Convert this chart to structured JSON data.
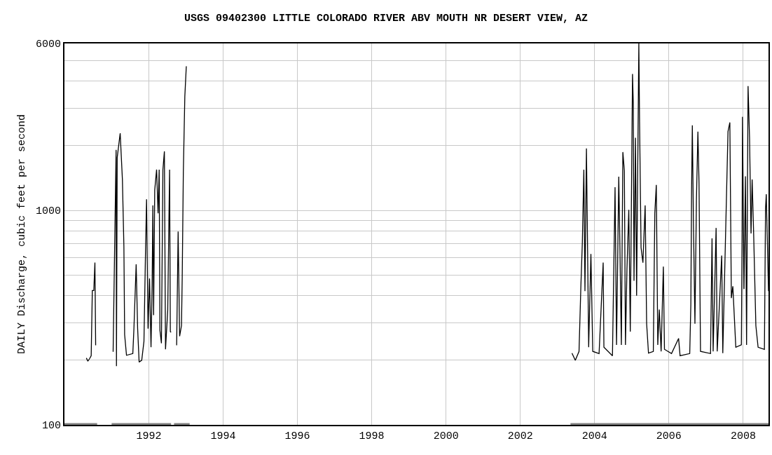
{
  "chart_data": {
    "type": "line",
    "title": "USGS 09402300 LITTLE COLORADO RIVER ABV MOUTH NR DESERT VIEW, AZ",
    "ylabel": "DAILY Discharge, cubic feet per second",
    "log": "y",
    "grid": true,
    "marker": "none",
    "line_style": "solid",
    "xlim": [
      1989.73,
      2008.68
    ],
    "xticks": [
      1992,
      1994,
      1996,
      1998,
      2000,
      2002,
      2004,
      2006,
      2008
    ],
    "ylim": [
      100,
      6000
    ],
    "yticks": [
      100,
      {
        "value": 200,
        "label": null
      },
      {
        "value": 300,
        "label": null
      },
      {
        "value": 400,
        "label": null
      },
      {
        "value": 500,
        "label": null
      },
      {
        "value": 600,
        "label": null
      },
      {
        "value": 700,
        "label": null
      },
      {
        "value": 800,
        "label": null
      },
      {
        "value": 900,
        "label": null
      },
      1000,
      {
        "value": 2000,
        "label": null
      },
      {
        "value": 3000,
        "label": null
      },
      {
        "value": 4000,
        "label": null
      },
      {
        "value": 5000,
        "label": null
      },
      6000
    ],
    "series": [
      {
        "color": "#000000",
        "x": [
          1990.32,
          1990.36,
          1990.41,
          1990.45,
          1990.48,
          1990.52,
          1990.55,
          1990.57,
          1990.58,
          1991.04,
          1991.12,
          1991.13,
          1991.15,
          1991.23,
          1991.29,
          1991.33,
          1991.35,
          1991.4,
          1991.57,
          1991.6,
          1991.66,
          1991.7,
          1991.74,
          1991.81,
          1991.87,
          1991.91,
          1991.94,
          1991.98,
          1992.02,
          1992.06,
          1992.09,
          1992.11,
          1992.13,
          1992.16,
          1992.21,
          1992.25,
          1992.28,
          1992.3,
          1992.34,
          1992.38,
          1992.42,
          1992.45,
          1992.51,
          1992.56,
          1992.58,
          1992.6,
          1992.61,
          1992.75,
          1992.79,
          1992.83,
          1992.88,
          1992.9,
          1992.93,
          1992.97,
          1993.01
        ],
        "values": [
          205,
          198,
          204,
          210,
          423,
          423,
          571,
          235,
          null,
          219,
          1915,
          188,
          1762,
          2290,
          1394,
          680,
          263,
          211,
          215,
          281,
          560,
          281,
          196,
          200,
          245,
          616,
          1127,
          281,
          481,
          230,
          449,
          1054,
          325,
          1245,
          1549,
          970,
          1549,
          276,
          240,
          1549,
          1884,
          225,
          342,
          1549,
          272,
          270,
          null,
          235,
          797,
          259,
          290,
          489,
          1513,
          3396,
          4700
        ]
      },
      {
        "color": "#000000",
        "x": [
          2003.39,
          2003.48,
          2003.58,
          2003.63,
          2003.67,
          2003.71,
          2003.74,
          2003.78,
          2003.84,
          2003.9,
          2003.95,
          2004.12,
          2004.23,
          2004.25,
          2004.48,
          2004.55,
          2004.59,
          2004.65,
          2004.68,
          2004.72,
          2004.76,
          2004.8,
          2004.83,
          2004.87,
          2004.92,
          2004.96,
          2005.02,
          2005.04,
          2005.06,
          2005.1,
          2005.13,
          2005.19,
          2005.21,
          2005.25,
          2005.3,
          2005.36,
          2005.4,
          2005.45,
          2005.58,
          2005.62,
          2005.66,
          2005.7,
          2005.74,
          2005.79,
          2005.85,
          2005.88,
          2006.07,
          2006.26,
          2006.3,
          2006.56,
          2006.59,
          2006.61,
          2006.63,
          2006.66,
          2006.7,
          2006.74,
          2006.78,
          2006.81,
          2006.85,
          2007.12,
          2007.16,
          2007.19,
          2007.27,
          2007.3,
          2007.42,
          2007.45,
          2007.59,
          2007.64,
          2007.68,
          2007.72,
          2007.8,
          2007.95,
          2007.97,
          2007.98,
          2008.02,
          2008.06,
          2008.09,
          2008.13,
          2008.17,
          2008.21,
          2008.24,
          2008.28,
          2008.34,
          2008.4,
          2008.57,
          2008.6,
          2008.62,
          2008.68
        ],
        "values": [
          216,
          200,
          220,
          443,
          711,
          1549,
          420,
          1945,
          230,
          626,
          220,
          215,
          571,
          230,
          210,
          1282,
          236,
          1436,
          690,
          236,
          1870,
          1530,
          236,
          531,
          1006,
          272,
          4325,
          3178,
          470,
          2180,
          400,
          6000,
          2570,
          670,
          570,
          1054,
          296,
          216,
          220,
          970,
          1313,
          236,
          345,
          220,
          547,
          225,
          215,
          253,
          210,
          215,
          364,
          1245,
          2494,
          866,
          296,
          1110,
          2330,
          1340,
          220,
          215,
          740,
          220,
          828,
          220,
          616,
          216,
          2330,
          2570,
          390,
          443,
          230,
          236,
          820,
          2730,
          430,
          1440,
          236,
          3800,
          2180,
          780,
          1394,
          780,
          290,
          230,
          225,
          1020,
          1190,
          420
        ]
      },
      {
        "color": "#808080",
        "x": [
          1989.73,
          1990.61,
          1990.62,
          1991.0,
          1992.6,
          1992.62,
          1992.68,
          1993.1,
          1993.12,
          2003.35,
          2008.68
        ],
        "values": [
          100,
          100,
          null,
          100,
          100,
          null,
          100,
          100,
          null,
          100,
          100
        ]
      }
    ]
  }
}
